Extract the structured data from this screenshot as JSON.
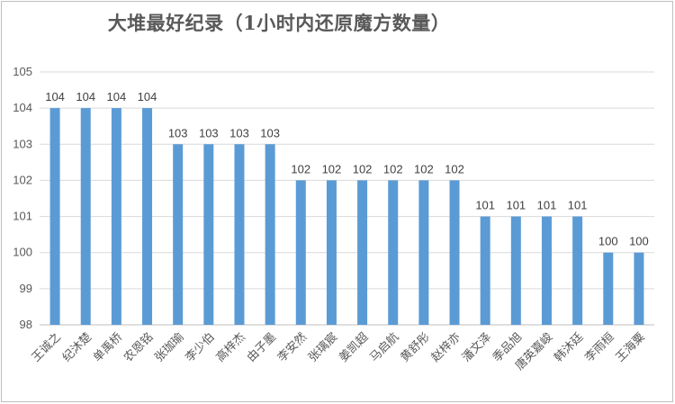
{
  "chart_data": {
    "type": "bar",
    "title": "大堆最好纪录（1小时内还原魔方数量）",
    "xlabel": "",
    "ylabel": "",
    "ylim": [
      98,
      105
    ],
    "yticks": [
      98,
      99,
      100,
      101,
      102,
      103,
      104,
      105
    ],
    "grid": true,
    "legend": "none",
    "bar_color": "#5b9bd5",
    "categories": [
      "王诚之",
      "纪沐楚",
      "单禹桥",
      "农恩铭",
      "张珈瑜",
      "李少伯",
      "高梓杰",
      "由子墨",
      "李安然",
      "张璃宸",
      "姜凯超",
      "马启航",
      "黄舒彤",
      "赵梓亦",
      "潘文泽",
      "季品旭",
      "唐英嘉峻",
      "韩沐廷",
      "李雨桓",
      "王海粟"
    ],
    "values": [
      104,
      104,
      104,
      104,
      103,
      103,
      103,
      103,
      102,
      102,
      102,
      102,
      102,
      102,
      101,
      101,
      101,
      101,
      100,
      100
    ]
  }
}
